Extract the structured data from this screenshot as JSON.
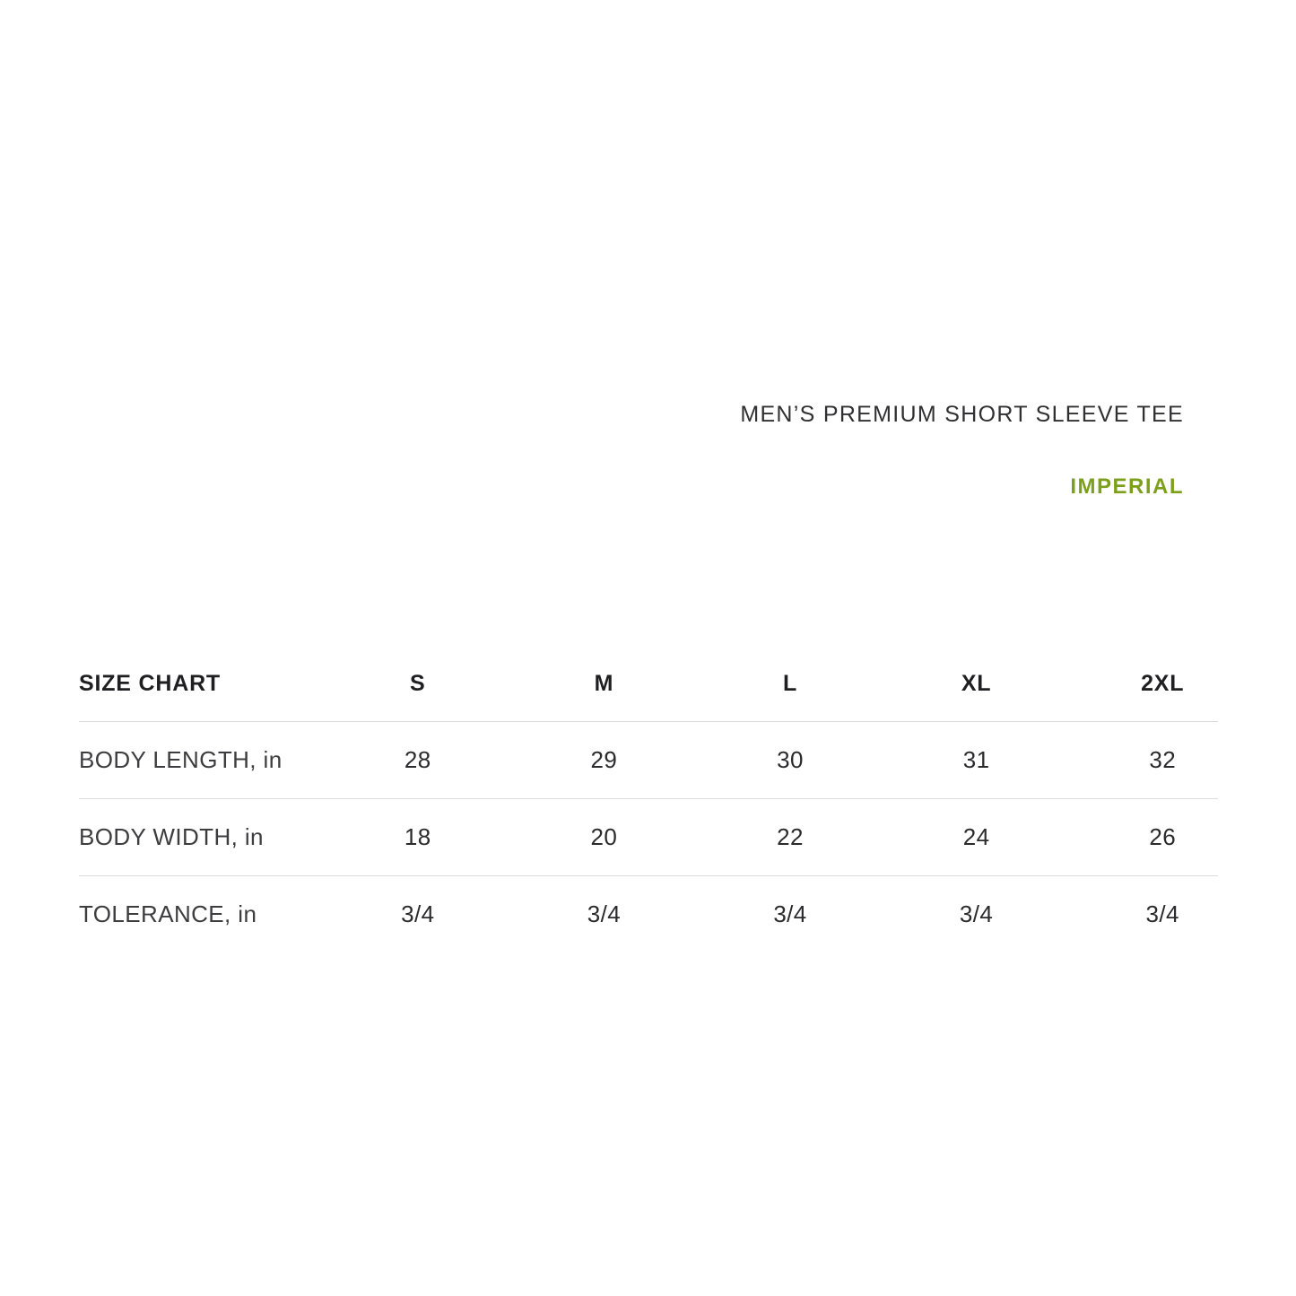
{
  "header": {
    "product_title": "MEN’S PREMIUM SHORT SLEEVE TEE",
    "unit_label": "IMPERIAL"
  },
  "colors": {
    "accent_green": "#7DA01C",
    "text_primary": "#303032",
    "text_headers": "#1F1F21",
    "text_labels": "#3D3D3F",
    "text_values": "#2B2B2D",
    "divider": "#DBDBDB"
  },
  "chart_data": {
    "type": "table",
    "title": "MEN’S PREMIUM SHORT SLEEVE TEE",
    "unit_system": "IMPERIAL",
    "columns": [
      "SIZE CHART",
      "S",
      "M",
      "L",
      "XL",
      "2XL"
    ],
    "rows": [
      {
        "label": "BODY LENGTH, in",
        "values": [
          "28",
          "29",
          "30",
          "31",
          "32"
        ]
      },
      {
        "label": "BODY WIDTH, in",
        "values": [
          "18",
          "20",
          "22",
          "24",
          "26"
        ]
      },
      {
        "label": "TOLERANCE, in",
        "values": [
          "3/4",
          "3/4",
          "3/4",
          "3/4",
          "3/4"
        ]
      }
    ]
  }
}
